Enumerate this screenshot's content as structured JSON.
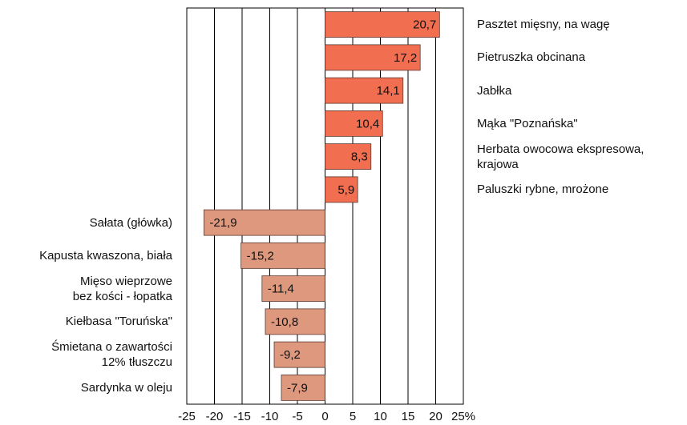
{
  "chart_data": {
    "type": "barh",
    "categories": [
      "Pasztet mięsny, na wagę",
      "Pietruszka obcinana",
      "Jabłka",
      "Mąka \"Poznańska\"",
      "Herbata owocowa ekspresowa,\nkrajowa",
      "Paluszki rybne, mrożone",
      "Sałata (główka)",
      "Kapusta kwaszona, biała",
      "Mięso wieprzowe\nbez kości - łopatka",
      "Kiełbasa \"Toruńska\"",
      "Śmietana o zawartości\n12% tłuszczu",
      "Sardynka w oleju"
    ],
    "values": [
      20.7,
      17.2,
      14.1,
      10.4,
      8.3,
      5.9,
      -21.9,
      -15.2,
      -11.4,
      -10.8,
      -9.2,
      -7.9
    ],
    "value_labels": [
      "20,7",
      "17,2",
      "14,1",
      "10,4",
      "8,3",
      "5,9",
      "-21,9",
      "-15,2",
      "-11,4",
      "-10,8",
      "-9,2",
      "-7,9"
    ],
    "color_positive": "#f26e50",
    "color_negative": "#dd987e",
    "xlim": [
      -25,
      25
    ],
    "xticks": [
      -25,
      -20,
      -15,
      -10,
      -5,
      0,
      5,
      10,
      15,
      20,
      {
        "value": 25,
        "label": "25%"
      }
    ],
    "grid": true
  }
}
